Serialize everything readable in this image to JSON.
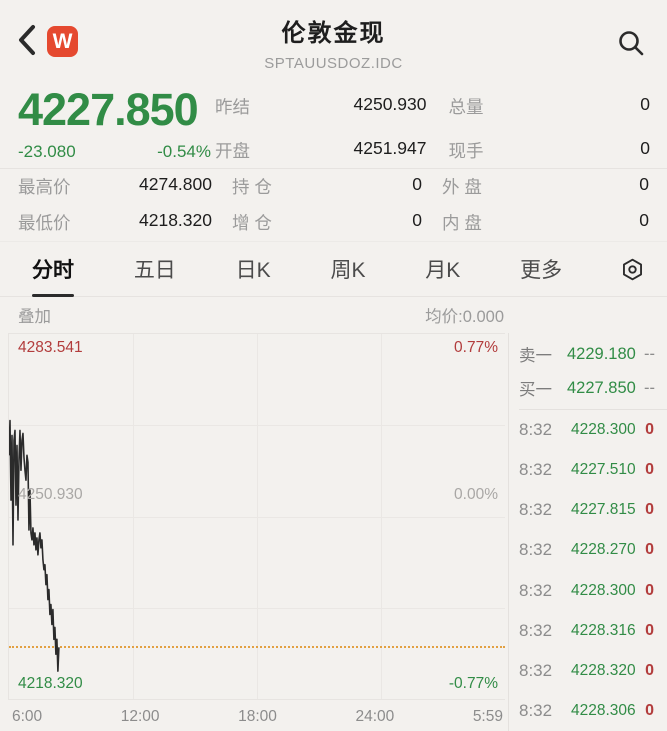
{
  "colors": {
    "green": "#318c46",
    "red": "#b23c3c",
    "orange_dotted_line": "#e2a041",
    "badge_red": "#e5492f"
  },
  "header": {
    "title": "伦敦金现",
    "subtitle": "SPTAUUSDOZ.IDC",
    "badge": "W"
  },
  "quote": {
    "price": "4227.850",
    "change": "-23.080",
    "change_pct": "-0.54%",
    "rows": [
      [
        "昨结",
        "4250.930",
        "总量",
        "0"
      ],
      [
        "开盘",
        "4251.947",
        "现手",
        "0"
      ]
    ]
  },
  "stats": {
    "rows": [
      [
        "最高价",
        "4274.800",
        "持 仓",
        "0",
        "外 盘",
        "0"
      ],
      [
        "最低价",
        "4218.320",
        "增 仓",
        "0",
        "内 盘",
        "0"
      ]
    ]
  },
  "tabs": {
    "items": [
      "分时",
      "五日",
      "日K",
      "周K",
      "月K",
      "更多"
    ],
    "active_index": 0
  },
  "chart": {
    "overlay_label": "叠加",
    "avg_label": "均价:0.000",
    "y_top": "4283.541",
    "y_mid": "4250.930",
    "y_bottom": "4218.320",
    "pct_top": "0.77%",
    "pct_mid": "0.00%",
    "pct_bottom": "-0.77%",
    "x_ticks": [
      "6:00",
      "12:00",
      "18:00",
      "24:00",
      "5:59"
    ],
    "last_price_line_value": "4227.850",
    "line_points": [
      [
        0,
        122
      ],
      [
        1,
        87
      ],
      [
        2,
        167
      ],
      [
        3,
        102
      ],
      [
        4,
        212
      ],
      [
        5,
        107
      ],
      [
        6,
        97
      ],
      [
        7,
        172
      ],
      [
        8,
        112
      ],
      [
        9,
        187
      ],
      [
        10,
        127
      ],
      [
        11,
        97
      ],
      [
        12,
        137
      ],
      [
        13,
        107
      ],
      [
        14,
        100
      ],
      [
        15,
        124
      ],
      [
        16,
        137
      ],
      [
        17,
        147
      ],
      [
        18,
        122
      ],
      [
        19,
        129
      ],
      [
        20,
        197
      ],
      [
        21,
        157
      ],
      [
        22,
        200
      ],
      [
        23,
        207
      ],
      [
        24,
        195
      ],
      [
        25,
        212
      ],
      [
        26,
        200
      ],
      [
        27,
        217
      ],
      [
        28,
        205
      ],
      [
        29,
        222
      ],
      [
        30,
        207
      ],
      [
        31,
        200
      ],
      [
        32,
        215
      ],
      [
        33,
        207
      ],
      [
        34,
        227
      ],
      [
        35,
        237
      ],
      [
        36,
        232
      ],
      [
        37,
        252
      ],
      [
        38,
        242
      ],
      [
        39,
        267
      ],
      [
        40,
        257
      ],
      [
        41,
        282
      ],
      [
        42,
        272
      ],
      [
        43,
        292
      ],
      [
        44,
        277
      ],
      [
        45,
        307
      ],
      [
        46,
        295
      ],
      [
        47,
        322
      ],
      [
        48,
        307
      ],
      [
        49,
        339
      ],
      [
        50,
        315
      ]
    ]
  },
  "panel": {
    "ask_label": "卖一",
    "ask_price": "4229.180",
    "ask_vol": "--",
    "bid_label": "买一",
    "bid_price": "4227.850",
    "bid_vol": "--",
    "ticks": [
      {
        "time": "8:32",
        "price": "4228.300",
        "vol": "0"
      },
      {
        "time": "8:32",
        "price": "4227.510",
        "vol": "0"
      },
      {
        "time": "8:32",
        "price": "4227.815",
        "vol": "0"
      },
      {
        "time": "8:32",
        "price": "4228.270",
        "vol": "0"
      },
      {
        "time": "8:32",
        "price": "4228.300",
        "vol": "0"
      },
      {
        "time": "8:32",
        "price": "4228.316",
        "vol": "0"
      },
      {
        "time": "8:32",
        "price": "4228.320",
        "vol": "0"
      },
      {
        "time": "8:32",
        "price": "4228.306",
        "vol": "0"
      }
    ]
  }
}
